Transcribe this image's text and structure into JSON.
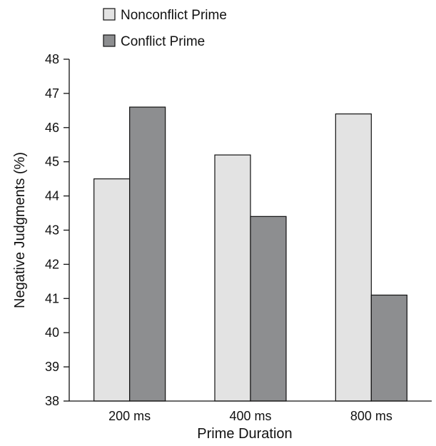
{
  "chart_data": {
    "type": "bar",
    "title": "",
    "xlabel": "Prime Duration",
    "ylabel": "Negative Judgments (%)",
    "categories": [
      "200 ms",
      "400 ms",
      "800 ms"
    ],
    "series": [
      {
        "name": "Nonconflict Prime",
        "color": "#e3e3e3",
        "values": [
          44.5,
          45.2,
          46.4
        ]
      },
      {
        "name": "Conflict Prime",
        "color": "#8d8e90",
        "values": [
          46.6,
          43.4,
          41.1
        ]
      }
    ],
    "ylim": [
      38,
      48
    ],
    "yticks": [
      "38",
      "39",
      "40",
      "41",
      "42",
      "43",
      "44",
      "45",
      "46",
      "47",
      "48"
    ],
    "grid": false,
    "legend_position": "top-left"
  }
}
